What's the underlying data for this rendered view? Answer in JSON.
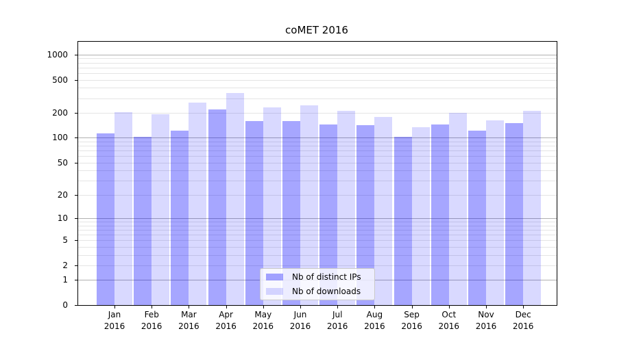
{
  "chart_data": {
    "type": "bar",
    "title": "coMET 2016",
    "xlabel": "",
    "ylabel": "",
    "year": "2016",
    "categories": [
      "Jan",
      "Feb",
      "Mar",
      "Apr",
      "May",
      "Jun",
      "Jul",
      "Aug",
      "Sep",
      "Oct",
      "Nov",
      "Dec"
    ],
    "series": [
      {
        "name": "Nb of distinct IPs",
        "color": "rgba(0,0,255,0.35)",
        "values": [
          112,
          103,
          122,
          220,
          160,
          160,
          146,
          141,
          103,
          146,
          123,
          150
        ]
      },
      {
        "name": "Nb of downloads",
        "color": "rgba(0,0,255,0.15)",
        "values": [
          203,
          192,
          266,
          347,
          233,
          248,
          210,
          179,
          135,
          200,
          161,
          210
        ]
      }
    ],
    "y_scale": "log10(value+1)",
    "ylim": [
      0,
      1430
    ],
    "y_ticks": [
      0,
      1,
      2,
      5,
      10,
      20,
      50,
      100,
      200,
      500,
      1000
    ],
    "y_major_gridlines": [
      1,
      10,
      100,
      1000
    ],
    "y_minor_gridlines": [
      2,
      3,
      4,
      5,
      6,
      7,
      8,
      9,
      20,
      30,
      40,
      50,
      60,
      70,
      80,
      90,
      200,
      300,
      400,
      500,
      600,
      700,
      800,
      900
    ],
    "grid": true,
    "legend_position": "lower-center",
    "colors": {
      "major_grid": "#b0b0b0",
      "minor_grid": "#e4e4e4",
      "spine": "#000000",
      "legend_border": "#c9c9c9",
      "legend_background": "rgba(255,255,255,0.8)"
    }
  }
}
